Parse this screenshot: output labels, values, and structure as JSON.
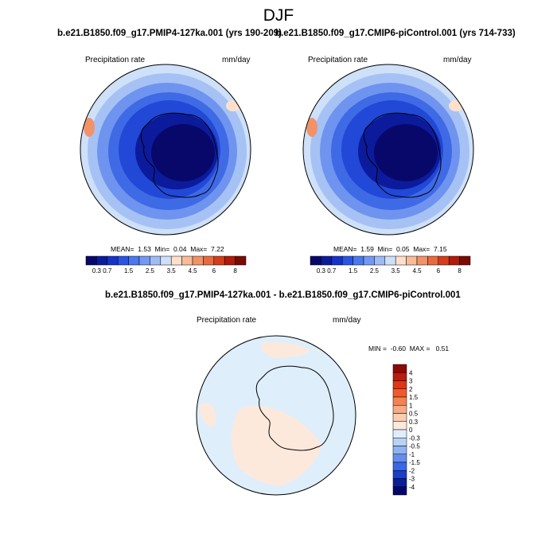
{
  "figure": {
    "season": "DJF"
  },
  "panels": [
    {
      "case": "b.e21.B1850.f09_g17.PMIP4-127ka.001 (yrs 190-209)",
      "variable": "Precipitation rate",
      "units": "mm/day",
      "stats": {
        "mean": "1.53",
        "min": "0.04",
        "max": "7.22"
      }
    },
    {
      "case": "b.e21.B1850.f09_g17.CMIP6-piControl.001 (yrs 714-733)",
      "variable": "Precipitation rate",
      "units": "mm/day",
      "stats": {
        "mean": "1.59",
        "min": "0.05",
        "max": "7.15"
      }
    }
  ],
  "labels": {
    "mean": "MEAN=",
    "min": "Min=",
    "max": "Max=",
    "diff_min": "MIN =",
    "diff_max": "MAX ="
  },
  "colorbar": {
    "ticks": [
      "0.3",
      "0.7",
      "1",
      "1.5",
      "2",
      "2.5",
      "3",
      "3.5",
      "4",
      "4.5",
      "5",
      "6",
      "7",
      "8"
    ],
    "labeled_ticks": [
      "0.3",
      "0.7",
      "1.5",
      "2.5",
      "3.5",
      "4.5",
      "6",
      "8"
    ],
    "colors": [
      "#08086b",
      "#0c1b9c",
      "#1433c9",
      "#2a55e4",
      "#4a78ee",
      "#7298f2",
      "#9fbaf5",
      "#cddff9",
      "#fde0cc",
      "#f9bb98",
      "#f19268",
      "#e86a3f",
      "#d43e1b",
      "#b01b0a",
      "#7a0a04"
    ]
  },
  "difference": {
    "title": "b.e21.B1850.f09_g17.PMIP4-127ka.001 - b.e21.B1850.f09_g17.CMIP6-piControl.001",
    "variable": "Precipitation rate",
    "units": "mm/day",
    "min": "-0.60",
    "max": "0.51",
    "colorbar": {
      "labels": [
        "4",
        "3",
        "2",
        "1.5",
        "1",
        "0.5",
        "0.3",
        "0",
        "-0.3",
        "-0.5",
        "-1",
        "-1.5",
        "-2",
        "-3",
        "-4"
      ],
      "colors": [
        "#8b0a05",
        "#bd1b0c",
        "#dc3815",
        "#ee5a2a",
        "#f5824f",
        "#f8aa85",
        "#fbcdb1",
        "#fde9dc",
        "#dfeefb",
        "#b9d3f6",
        "#8fb2f1",
        "#648ded",
        "#3a67e4",
        "#1b40c6",
        "#0c1f95",
        "#05066b"
      ]
    }
  }
}
